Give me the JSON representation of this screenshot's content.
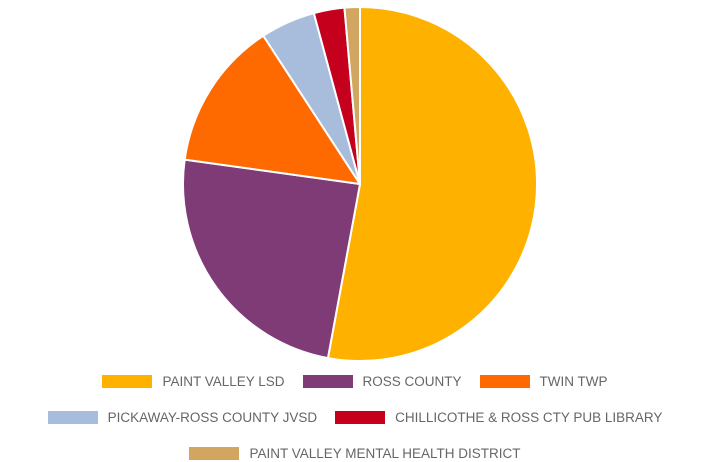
{
  "chart_data": {
    "type": "pie",
    "title": "",
    "slices": [
      {
        "label": "PAINT VALLEY LSD",
        "value": 52.9,
        "color": "#FFB100"
      },
      {
        "label": "ROSS COUNTY",
        "value": 24.3,
        "color": "#7F3B75"
      },
      {
        "label": "TWIN TWP",
        "value": 13.6,
        "color": "#FF6A00"
      },
      {
        "label": "PICKAWAY-ROSS COUNTY JVSD",
        "value": 5.0,
        "color": "#A8BCDB"
      },
      {
        "label": "CHILLICOTHE & ROSS CTY PUB LIBRARY",
        "value": 2.8,
        "color": "#C4001D"
      },
      {
        "label": "PAINT VALLEY MENTAL HEALTH DISTRICT",
        "value": 1.4,
        "color": "#D2A661"
      }
    ],
    "legend_position": "bottom",
    "slice_border_color": "#ffffff"
  }
}
